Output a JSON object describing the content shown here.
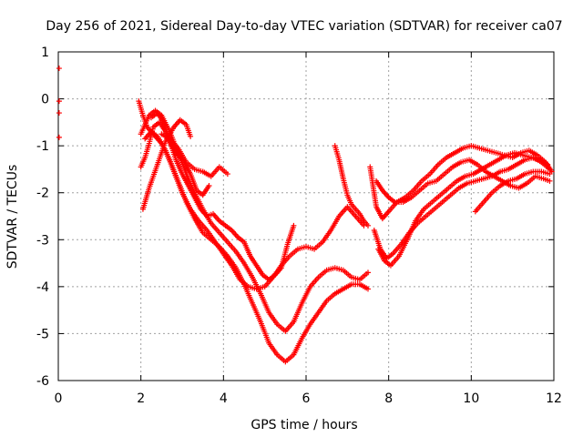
{
  "chart_data": {
    "type": "scatter",
    "title": "Day 256 of 2021, Sidereal Day-to-day VTEC variation (SDTVAR) for receiver ca07",
    "xlabel": "GPS time / hours",
    "ylabel": "SDTVAR / TECUs",
    "xlim": [
      0,
      12
    ],
    "ylim": [
      -6,
      1
    ],
    "xticks": [
      "0",
      "2",
      "4",
      "6",
      "8",
      "10",
      "12"
    ],
    "yticks": [
      "-6",
      "-5",
      "-4",
      "-3",
      "-2",
      "-1",
      "0",
      "1"
    ],
    "grid": true,
    "marker_color": "#ff0000",
    "marker": "plus",
    "series": [
      {
        "x": [
          0.02,
          0.02,
          0.02,
          0.02
        ],
        "y": [
          0.65,
          -0.05,
          -0.3,
          -0.82
        ]
      },
      {
        "x": [
          1.95,
          2.05,
          2.15,
          2.3,
          2.5,
          2.7,
          2.9,
          3.1,
          3.3,
          3.5,
          3.7,
          3.9,
          4.1,
          4.3,
          4.5,
          4.7,
          4.9,
          5.1,
          5.3,
          5.5,
          5.7,
          5.9,
          6.1,
          6.3,
          6.5,
          6.7,
          6.9,
          7.1,
          7.3,
          7.5
        ],
        "y": [
          -0.05,
          -0.35,
          -0.6,
          -0.75,
          -0.95,
          -1.3,
          -1.75,
          -2.2,
          -2.55,
          -2.85,
          -3.0,
          -3.15,
          -3.35,
          -3.6,
          -3.95,
          -4.35,
          -4.75,
          -5.2,
          -5.45,
          -5.6,
          -5.45,
          -5.1,
          -4.8,
          -4.55,
          -4.3,
          -4.15,
          -4.05,
          -3.95,
          -3.95,
          -4.05
        ]
      },
      {
        "x": [
          2.0,
          2.1,
          2.2,
          2.35,
          2.5,
          2.7,
          2.9,
          3.1,
          3.3,
          3.5,
          3.7,
          3.9,
          4.1,
          4.3,
          4.5,
          4.7,
          4.9,
          5.1,
          5.3,
          5.5,
          5.7,
          5.9,
          6.1,
          6.3,
          6.5,
          6.7,
          6.9,
          7.1,
          7.3,
          7.5
        ],
        "y": [
          -0.75,
          -0.55,
          -0.35,
          -0.25,
          -0.35,
          -0.7,
          -1.15,
          -1.6,
          -2.0,
          -2.35,
          -2.65,
          -2.85,
          -3.05,
          -3.25,
          -3.5,
          -3.8,
          -4.15,
          -4.55,
          -4.8,
          -4.95,
          -4.75,
          -4.35,
          -4.0,
          -3.8,
          -3.65,
          -3.6,
          -3.65,
          -3.8,
          -3.85,
          -3.7
        ]
      },
      {
        "x": [
          2.1,
          2.25,
          2.4,
          2.6,
          2.8,
          3.0,
          3.2,
          3.4,
          3.6,
          3.8,
          4.0,
          4.2,
          4.4,
          4.6,
          4.8,
          5.0,
          5.2,
          5.4,
          5.6,
          5.8,
          6.0,
          6.2,
          6.4,
          6.6,
          6.8,
          7.0,
          7.2,
          7.4
        ],
        "y": [
          -0.85,
          -0.7,
          -0.8,
          -1.1,
          -1.55,
          -2.0,
          -2.35,
          -2.6,
          -2.8,
          -3.05,
          -3.3,
          -3.55,
          -3.85,
          -4.0,
          -4.05,
          -4.0,
          -3.8,
          -3.55,
          -3.35,
          -3.2,
          -3.15,
          -3.2,
          -3.05,
          -2.8,
          -2.5,
          -2.3,
          -2.5,
          -2.7
        ]
      },
      {
        "x": [
          2.25,
          2.4,
          2.55,
          2.7,
          2.85,
          3.0,
          3.15,
          3.3,
          3.45,
          3.6,
          3.75,
          3.9,
          4.05,
          4.2,
          4.35,
          4.5,
          4.65,
          4.8,
          4.95,
          5.1,
          5.25,
          5.4,
          5.55,
          5.7
        ],
        "y": [
          -0.4,
          -0.3,
          -0.5,
          -0.9,
          -1.3,
          -1.6,
          -1.85,
          -2.1,
          -2.35,
          -2.5,
          -2.45,
          -2.6,
          -2.7,
          -2.8,
          -2.95,
          -3.05,
          -3.35,
          -3.55,
          -3.75,
          -3.85,
          -3.75,
          -3.6,
          -3.1,
          -2.7
        ]
      },
      {
        "x": [
          2.0,
          2.1,
          2.2,
          2.3,
          2.45,
          2.6,
          2.75,
          2.9,
          3.05,
          3.2,
          3.35,
          3.5,
          3.65
        ],
        "y": [
          -1.45,
          -1.25,
          -0.95,
          -0.6,
          -0.5,
          -0.7,
          -1.0,
          -1.2,
          -1.35,
          -1.6,
          -1.95,
          -2.05,
          -1.85
        ]
      },
      {
        "x": [
          2.5,
          2.7,
          2.9,
          3.1,
          3.3,
          3.5,
          3.7,
          3.9,
          4.1
        ],
        "y": [
          -0.75,
          -0.85,
          -1.05,
          -1.35,
          -1.5,
          -1.55,
          -1.65,
          -1.45,
          -1.6
        ]
      },
      {
        "x": [
          2.05,
          2.2,
          2.4,
          2.6,
          2.8,
          2.95,
          3.1,
          3.2
        ],
        "y": [
          -2.35,
          -1.9,
          -1.4,
          -0.9,
          -0.6,
          -0.45,
          -0.55,
          -0.8
        ]
      },
      {
        "x": [
          6.7,
          6.8,
          6.9,
          7.0,
          7.1,
          7.2,
          7.3,
          7.4,
          7.5
        ],
        "y": [
          -1.0,
          -1.3,
          -1.7,
          -2.05,
          -2.25,
          -2.35,
          -2.45,
          -2.6,
          -2.7
        ]
      },
      {
        "x": [
          7.55,
          7.7,
          7.85,
          8.0,
          8.2,
          8.4,
          8.6,
          8.8,
          9.0,
          9.2,
          9.4,
          9.6,
          9.8,
          10.0,
          10.2,
          10.4,
          10.6,
          10.8,
          11.0,
          11.2,
          11.4,
          11.6,
          11.8,
          11.95
        ],
        "y": [
          -1.45,
          -2.3,
          -2.55,
          -2.4,
          -2.2,
          -2.1,
          -1.95,
          -1.75,
          -1.6,
          -1.4,
          -1.25,
          -1.15,
          -1.05,
          -1.0,
          -1.05,
          -1.1,
          -1.15,
          -1.2,
          -1.25,
          -1.15,
          -1.1,
          -1.2,
          -1.35,
          -1.55
        ]
      },
      {
        "x": [
          7.65,
          7.8,
          7.95,
          8.1,
          8.3,
          8.5,
          8.7,
          8.9,
          9.1,
          9.3,
          9.5,
          9.7,
          9.9,
          10.1,
          10.3,
          10.5,
          10.7,
          10.9,
          11.1,
          11.3,
          11.5,
          11.7,
          11.9
        ],
        "y": [
          -2.8,
          -3.2,
          -3.4,
          -3.3,
          -3.1,
          -2.85,
          -2.65,
          -2.5,
          -2.35,
          -2.2,
          -2.05,
          -1.9,
          -1.8,
          -1.75,
          -1.7,
          -1.65,
          -1.55,
          -1.5,
          -1.4,
          -1.3,
          -1.25,
          -1.35,
          -1.5
        ]
      },
      {
        "x": [
          7.75,
          7.9,
          8.05,
          8.25,
          8.45,
          8.65,
          8.85,
          9.05,
          9.25,
          9.45,
          9.65,
          9.85,
          10.05,
          10.25,
          10.45,
          10.65,
          10.85,
          11.05,
          11.25,
          11.45,
          11.65,
          11.85
        ],
        "y": [
          -3.2,
          -3.45,
          -3.55,
          -3.35,
          -3.0,
          -2.6,
          -2.35,
          -2.2,
          -2.05,
          -1.9,
          -1.75,
          -1.65,
          -1.6,
          -1.5,
          -1.4,
          -1.3,
          -1.2,
          -1.15,
          -1.2,
          -1.25,
          -1.3,
          -1.4
        ]
      },
      {
        "x": [
          7.7,
          7.85,
          8.0,
          8.15,
          8.35,
          8.55,
          8.75,
          8.95,
          9.15,
          9.35,
          9.55,
          9.75,
          9.95,
          10.15,
          10.35,
          10.55,
          10.75,
          10.95,
          11.15,
          11.35,
          11.55,
          11.75,
          11.9
        ],
        "y": [
          -1.75,
          -1.95,
          -2.1,
          -2.2,
          -2.2,
          -2.1,
          -1.95,
          -1.8,
          -1.75,
          -1.6,
          -1.45,
          -1.35,
          -1.3,
          -1.4,
          -1.55,
          -1.65,
          -1.75,
          -1.85,
          -1.9,
          -1.8,
          -1.65,
          -1.7,
          -1.75
        ]
      },
      {
        "x": [
          10.1,
          10.3,
          10.5,
          10.7,
          10.9,
          11.1,
          11.3,
          11.5,
          11.7,
          11.9
        ],
        "y": [
          -2.4,
          -2.2,
          -2.0,
          -1.85,
          -1.75,
          -1.7,
          -1.6,
          -1.55,
          -1.55,
          -1.6
        ]
      }
    ]
  }
}
